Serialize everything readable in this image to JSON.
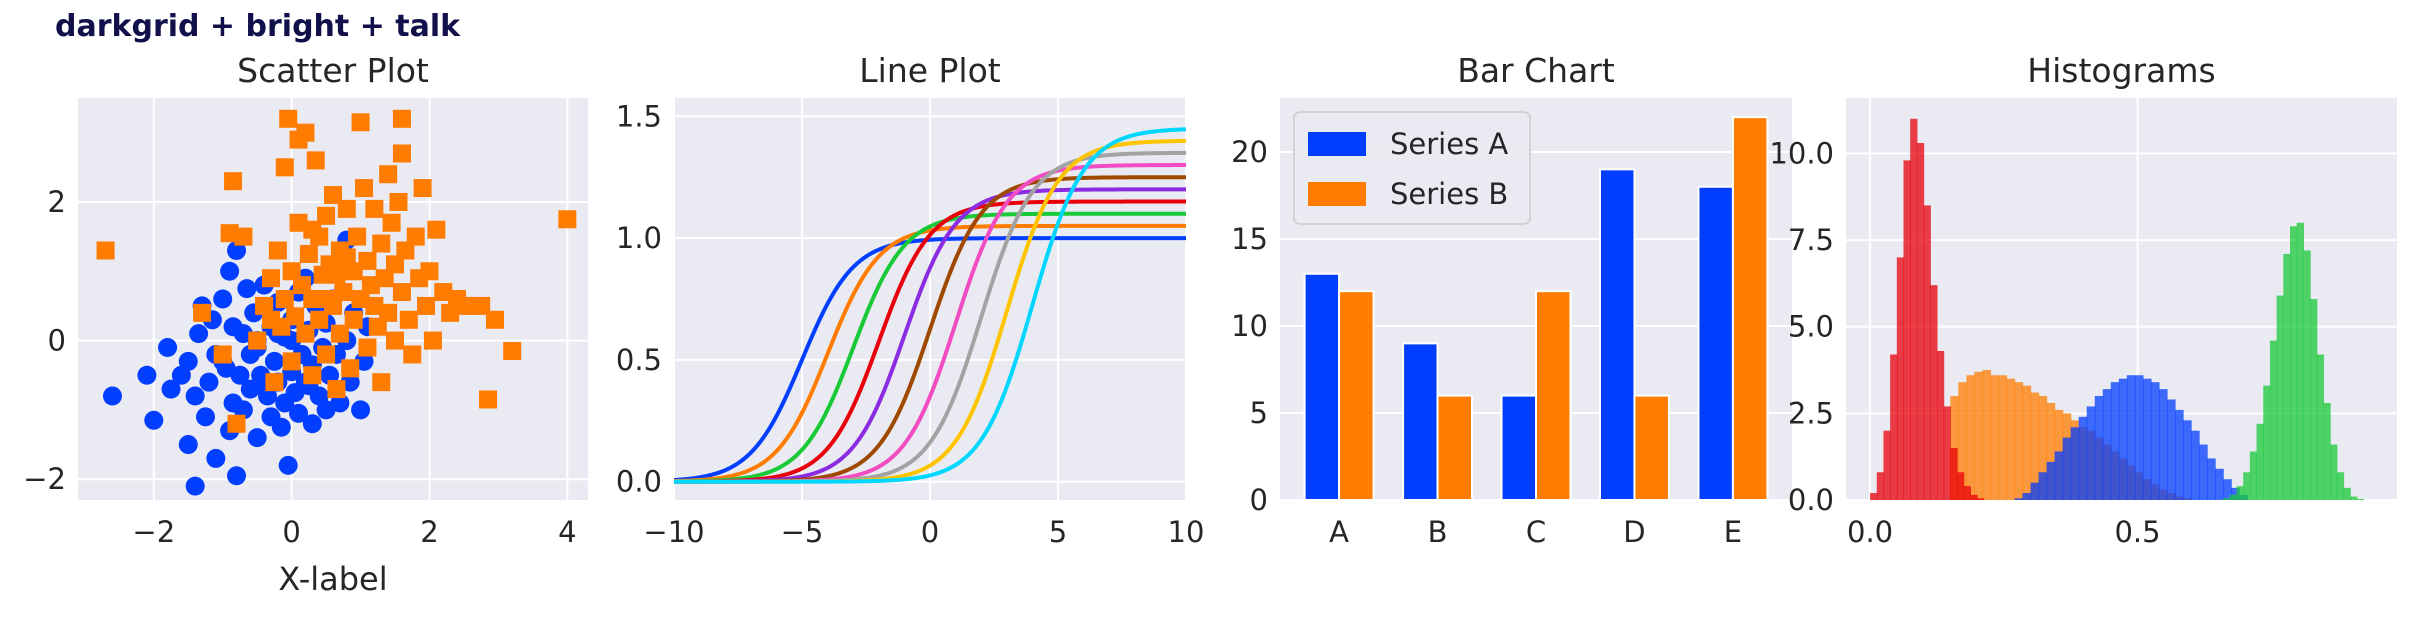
{
  "figure_title": "darkgrid + bright + talk",
  "style": {
    "axes_background": "#eaeaf2",
    "grid_color": "#ffffff"
  },
  "chart_data": [
    {
      "type": "scatter",
      "title": "Scatter Plot",
      "xlabel": "X-label",
      "ylabel": "",
      "xlim": [
        -3.1,
        4.3
      ],
      "ylim": [
        -2.3,
        3.5
      ],
      "xticks": [
        -2,
        0,
        2,
        4
      ],
      "yticks": [
        -2,
        0,
        2
      ],
      "xtick_labels": [
        "−2",
        "0",
        "2",
        "4"
      ],
      "ytick_labels": [
        "−2",
        "0",
        "2"
      ],
      "grid": true,
      "series": [
        {
          "color": "#023eff",
          "marker": "circle",
          "points": [
            [
              -2.6,
              -0.8
            ],
            [
              -2.1,
              -0.5
            ],
            [
              -2.0,
              -1.15
            ],
            [
              -1.8,
              -0.1
            ],
            [
              -1.75,
              -0.7
            ],
            [
              -1.6,
              -0.5
            ],
            [
              -1.5,
              -0.3
            ],
            [
              -1.5,
              -1.5
            ],
            [
              -1.4,
              -2.1
            ],
            [
              -1.4,
              -0.8
            ],
            [
              -1.35,
              0.1
            ],
            [
              -1.3,
              0.5
            ],
            [
              -1.25,
              -1.1
            ],
            [
              -1.2,
              -0.6
            ],
            [
              -1.15,
              0.3
            ],
            [
              -1.1,
              -0.2
            ],
            [
              -1.1,
              -1.7
            ],
            [
              -1.0,
              0.6
            ],
            [
              -0.95,
              -0.4
            ],
            [
              -0.9,
              -1.3
            ],
            [
              -0.9,
              1.0
            ],
            [
              -0.85,
              0.2
            ],
            [
              -0.85,
              -0.9
            ],
            [
              -0.8,
              1.3
            ],
            [
              -0.8,
              -1.95
            ],
            [
              -0.75,
              -0.5
            ],
            [
              -0.7,
              0.1
            ],
            [
              -0.7,
              -1.0
            ],
            [
              -0.65,
              0.75
            ],
            [
              -0.6,
              -0.2
            ],
            [
              -0.6,
              -0.7
            ],
            [
              -0.55,
              0.4
            ],
            [
              -0.5,
              -1.4
            ],
            [
              -0.5,
              0.0
            ],
            [
              -0.45,
              -0.5
            ],
            [
              -0.4,
              0.8
            ],
            [
              -0.35,
              -0.8
            ],
            [
              -0.3,
              0.2
            ],
            [
              -0.3,
              -1.1
            ],
            [
              -0.25,
              -0.3
            ],
            [
              -0.2,
              0.55
            ],
            [
              -0.2,
              -0.6
            ],
            [
              -0.15,
              -1.25
            ],
            [
              -0.1,
              0.05
            ],
            [
              -0.1,
              -0.9
            ],
            [
              -0.05,
              -1.8
            ],
            [
              0.0,
              0.3
            ],
            [
              0.0,
              -0.45
            ],
            [
              0.05,
              -0.75
            ],
            [
              0.1,
              0.7
            ],
            [
              0.1,
              -1.05
            ],
            [
              0.15,
              -0.2
            ],
            [
              0.2,
              0.9
            ],
            [
              0.2,
              -0.6
            ],
            [
              0.25,
              0.15
            ],
            [
              0.3,
              -1.2
            ],
            [
              0.3,
              -0.35
            ],
            [
              0.35,
              0.5
            ],
            [
              0.4,
              -0.8
            ],
            [
              0.45,
              -0.1
            ],
            [
              0.5,
              0.25
            ],
            [
              0.5,
              -1.0
            ],
            [
              0.55,
              -0.5
            ],
            [
              0.6,
              0.6
            ],
            [
              0.65,
              -0.2
            ],
            [
              0.7,
              -0.9
            ],
            [
              0.75,
              1.05
            ],
            [
              0.8,
              0.0
            ],
            [
              0.85,
              -0.6
            ],
            [
              0.9,
              0.4
            ],
            [
              1.0,
              -1.0
            ],
            [
              1.05,
              -0.3
            ],
            [
              1.1,
              0.2
            ],
            [
              0.8,
              1.45
            ],
            [
              -0.5,
              -0.1
            ],
            [
              -1.0,
              -0.3
            ],
            [
              0.0,
              0.0
            ],
            [
              -0.4,
              -0.6
            ],
            [
              -0.2,
              0.1
            ],
            [
              0.25,
              -0.65
            ]
          ]
        },
        {
          "color": "#ff7c00",
          "marker": "square",
          "points": [
            [
              -2.7,
              1.3
            ],
            [
              -1.3,
              0.4
            ],
            [
              -1.0,
              -0.2
            ],
            [
              -0.9,
              1.55
            ],
            [
              -0.85,
              2.3
            ],
            [
              -0.7,
              1.5
            ],
            [
              -0.8,
              -1.2
            ],
            [
              -0.5,
              0.0
            ],
            [
              -0.4,
              0.5
            ],
            [
              -0.3,
              0.9
            ],
            [
              -0.25,
              -0.6
            ],
            [
              -0.2,
              1.3
            ],
            [
              -0.15,
              0.2
            ],
            [
              -0.1,
              0.6
            ],
            [
              -0.1,
              2.5
            ],
            [
              -0.05,
              3.2
            ],
            [
              0.0,
              1.0
            ],
            [
              0.0,
              -0.3
            ],
            [
              0.05,
              0.35
            ],
            [
              0.1,
              2.9
            ],
            [
              0.1,
              1.7
            ],
            [
              0.15,
              0.8
            ],
            [
              0.2,
              3.0
            ],
            [
              0.2,
              0.1
            ],
            [
              0.25,
              1.25
            ],
            [
              0.3,
              -0.5
            ],
            [
              0.3,
              0.6
            ],
            [
              0.35,
              2.6
            ],
            [
              0.4,
              1.5
            ],
            [
              0.4,
              0.3
            ],
            [
              0.45,
              0.95
            ],
            [
              0.5,
              1.8
            ],
            [
              0.5,
              -0.2
            ],
            [
              0.55,
              1.1
            ],
            [
              0.6,
              0.5
            ],
            [
              0.6,
              2.1
            ],
            [
              0.65,
              -0.7
            ],
            [
              0.7,
              1.3
            ],
            [
              0.7,
              0.1
            ],
            [
              0.75,
              0.7
            ],
            [
              0.8,
              1.9
            ],
            [
              0.85,
              -0.4
            ],
            [
              0.9,
              1.0
            ],
            [
              0.9,
              0.3
            ],
            [
              0.95,
              1.5
            ],
            [
              1.0,
              3.15
            ],
            [
              1.0,
              0.6
            ],
            [
              1.05,
              2.2
            ],
            [
              1.1,
              1.15
            ],
            [
              1.1,
              -0.1
            ],
            [
              1.15,
              0.8
            ],
            [
              1.2,
              1.9
            ],
            [
              1.25,
              0.2
            ],
            [
              1.3,
              1.4
            ],
            [
              1.3,
              -0.6
            ],
            [
              1.35,
              0.9
            ],
            [
              1.4,
              0.4
            ],
            [
              1.45,
              1.7
            ],
            [
              1.5,
              1.1
            ],
            [
              1.5,
              0.0
            ],
            [
              1.55,
              2.0
            ],
            [
              1.6,
              3.2
            ],
            [
              1.6,
              2.7
            ],
            [
              1.6,
              0.7
            ],
            [
              1.65,
              1.3
            ],
            [
              1.7,
              0.3
            ],
            [
              1.75,
              -0.2
            ],
            [
              1.8,
              1.5
            ],
            [
              1.85,
              0.9
            ],
            [
              1.9,
              2.2
            ],
            [
              1.95,
              0.5
            ],
            [
              2.0,
              1.0
            ],
            [
              2.05,
              0.0
            ],
            [
              2.1,
              1.6
            ],
            [
              2.2,
              0.7
            ],
            [
              2.3,
              0.4
            ],
            [
              2.4,
              0.6
            ],
            [
              2.55,
              0.5
            ],
            [
              2.75,
              0.5
            ],
            [
              2.85,
              -0.85
            ],
            [
              2.95,
              0.3
            ],
            [
              3.2,
              -0.15
            ],
            [
              4.0,
              1.75
            ],
            [
              0.5,
              0.6
            ],
            [
              1.2,
              0.5
            ],
            [
              0.3,
              1.6
            ],
            [
              0.8,
              1.2
            ],
            [
              -0.3,
              0.3
            ],
            [
              1.4,
              2.4
            ],
            [
              0.65,
              0.95
            ]
          ]
        }
      ]
    },
    {
      "type": "line",
      "title": "Line Plot",
      "xlim": [
        -10,
        10
      ],
      "ylim": [
        -0.075,
        1.575
      ],
      "xticks": [
        -10,
        -5,
        0,
        5,
        10
      ],
      "yticks": [
        0.0,
        0.5,
        1.0,
        1.5
      ],
      "xtick_labels": [
        "−10",
        "−5",
        "0",
        "5",
        "10"
      ],
      "ytick_labels": [
        "0.0",
        "0.5",
        "1.0",
        "1.5"
      ],
      "grid": true,
      "function": "y = L / (1 + exp(-(x - c)))",
      "series": [
        {
          "color": "#023eff",
          "L": 1.0,
          "c": -5
        },
        {
          "color": "#ff7c00",
          "L": 1.05,
          "c": -4
        },
        {
          "color": "#1ac938",
          "L": 1.1,
          "c": -3
        },
        {
          "color": "#e8000b",
          "L": 1.15,
          "c": -2
        },
        {
          "color": "#8b2be2",
          "L": 1.2,
          "c": -1
        },
        {
          "color": "#9f4800",
          "L": 1.25,
          "c": 0
        },
        {
          "color": "#f14cc1",
          "L": 1.3,
          "c": 1
        },
        {
          "color": "#a3a3a3",
          "L": 1.35,
          "c": 2
        },
        {
          "color": "#ffc400",
          "L": 1.4,
          "c": 3
        },
        {
          "color": "#00d7ff",
          "L": 1.45,
          "c": 4
        }
      ]
    },
    {
      "type": "bar",
      "title": "Bar Chart",
      "categories": [
        "A",
        "B",
        "C",
        "D",
        "E"
      ],
      "ylim": [
        0,
        23.1
      ],
      "yticks": [
        0,
        5,
        10,
        15,
        20
      ],
      "ytick_labels": [
        "0",
        "5",
        "10",
        "15",
        "20"
      ],
      "grid": true,
      "legend_position": "top-left",
      "series": [
        {
          "name": "Series A",
          "color": "#023eff",
          "values": [
            13,
            9,
            6,
            19,
            18
          ]
        },
        {
          "name": "Series B",
          "color": "#ff7c00",
          "values": [
            12,
            6,
            12,
            6,
            22
          ]
        }
      ]
    },
    {
      "type": "histogram",
      "title": "Histograms",
      "xlim": [
        -0.045,
        0.985
      ],
      "ylim": [
        0,
        11.6
      ],
      "xticks": [
        0.0,
        0.5
      ],
      "yticks": [
        0.0,
        2.5,
        5.0,
        7.5,
        10.0
      ],
      "xtick_labels": [
        "0.0",
        "0.5"
      ],
      "ytick_labels": [
        "0.0",
        "2.5",
        "5.0",
        "7.5",
        "10.0"
      ],
      "grid": true,
      "series": [
        {
          "color": "#ff7c00",
          "opacity": 0.75,
          "x_start": 0.15,
          "bin_width": 0.015,
          "values": [
            3.0,
            3.4,
            3.6,
            3.7,
            3.75,
            3.6,
            3.6,
            3.5,
            3.4,
            3.3,
            3.1,
            3.0,
            2.8,
            2.6,
            2.5,
            2.3,
            2.1,
            2.0,
            1.8,
            1.6,
            1.4,
            1.2,
            1.0,
            0.8,
            0.6,
            0.45,
            0.3,
            0.2,
            0.1,
            0.05
          ]
        },
        {
          "color": "#023eff",
          "opacity": 0.75,
          "x_start": 0.27,
          "bin_width": 0.015,
          "values": [
            0.05,
            0.2,
            0.5,
            0.8,
            1.1,
            1.4,
            1.8,
            2.1,
            2.4,
            2.7,
            3.0,
            3.2,
            3.4,
            3.5,
            3.6,
            3.6,
            3.5,
            3.4,
            3.2,
            2.9,
            2.6,
            2.3,
            2.0,
            1.6,
            1.2,
            0.9,
            0.6,
            0.35,
            0.15
          ]
        },
        {
          "color": "#e8000b",
          "opacity": 0.75,
          "x_start": 0.0,
          "bin_width": 0.0125,
          "values": [
            0.2,
            0.8,
            2.0,
            4.2,
            7.0,
            9.8,
            11.0,
            10.3,
            8.5,
            6.2,
            4.3,
            2.7,
            1.5,
            0.8,
            0.4,
            0.15,
            0.05
          ]
        },
        {
          "color": "#1ac938",
          "opacity": 0.75,
          "x_start": 0.66,
          "bin_width": 0.0125,
          "values": [
            0.05,
            0.15,
            0.4,
            0.8,
            1.4,
            2.2,
            3.3,
            4.6,
            5.9,
            7.1,
            7.9,
            8.0,
            7.2,
            5.8,
            4.2,
            2.8,
            1.6,
            0.8,
            0.35,
            0.1,
            0.03
          ]
        }
      ]
    }
  ]
}
